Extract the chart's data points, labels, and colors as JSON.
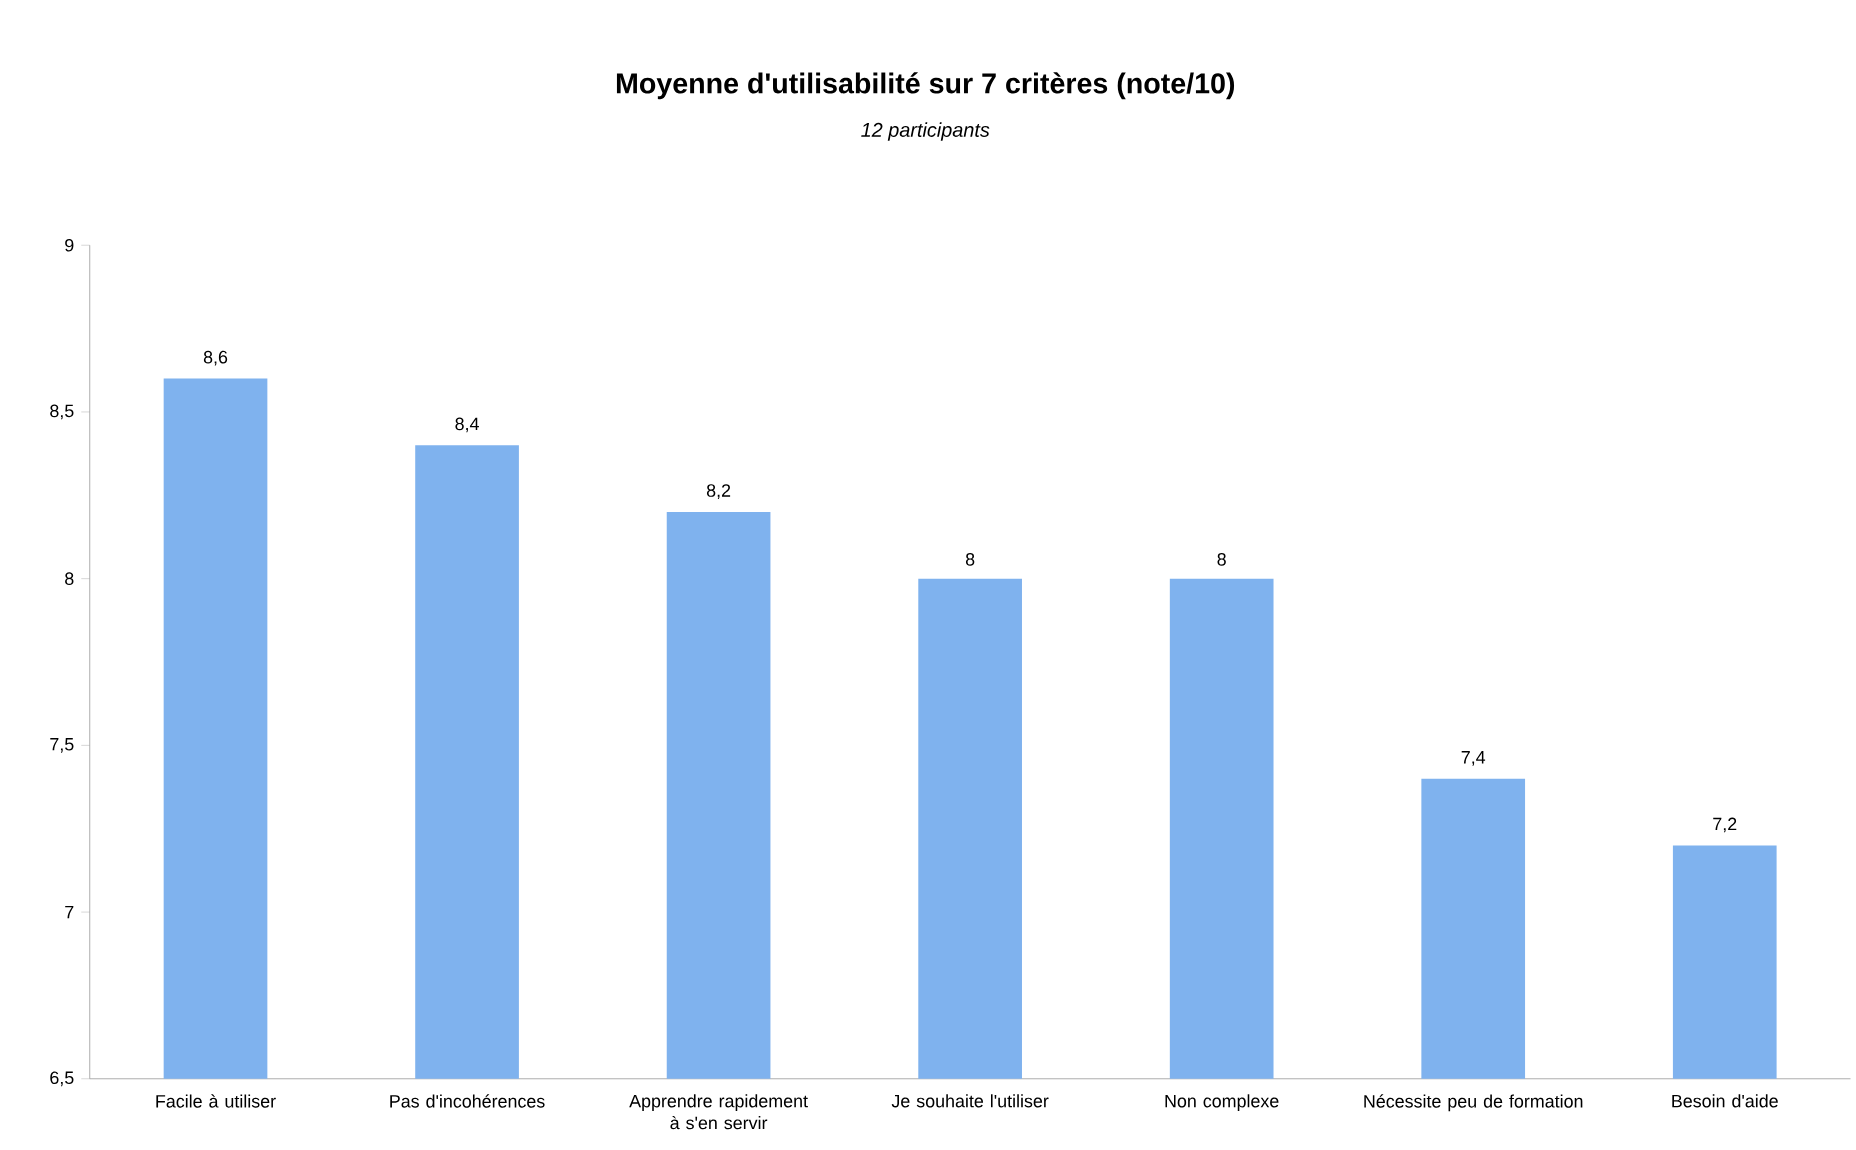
{
  "chart_data": {
    "type": "bar",
    "title": "Moyenne d'utilisabilité sur 7 critères (note/10)",
    "subtitle": "*12 participants*",
    "categories": [
      "Facile à utiliser",
      "Pas d'incohérences",
      "Apprendre rapidement à s'en servir",
      "Je souhaite l'utiliser",
      "Non complexe",
      "Nécessite peu de formation",
      "Besoin d'aide"
    ],
    "values": [
      8.6,
      8.4,
      8.2,
      8,
      8,
      7.4,
      7.2
    ],
    "value_labels": [
      "8,6",
      "8,4",
      "8,2",
      "8",
      "8",
      "7,4",
      "7,2"
    ],
    "color": "#7fb2ee",
    "ylim": [
      6.5,
      9
    ],
    "yticks": [
      {
        "value": 6.5,
        "label": "6,5"
      },
      7,
      {
        "value": 7.5,
        "label": "7,5"
      },
      8,
      {
        "value": 8.5,
        "label": "8,5"
      },
      9
    ],
    "grid": false
  }
}
